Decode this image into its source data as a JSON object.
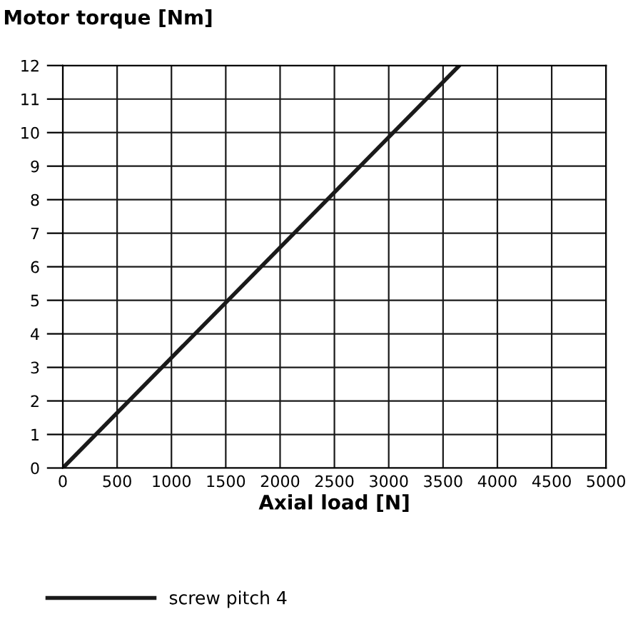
{
  "chart_data": {
    "type": "line",
    "title": "Motor torque [Nm]",
    "xlabel": "Axial load [N]",
    "series": [
      {
        "name": "screw pitch 4",
        "color": "#1a1a1a",
        "x": [
          0,
          3650
        ],
        "values": [
          0,
          12
        ]
      }
    ],
    "xlim": [
      0,
      5000
    ],
    "xticks": [
      0,
      500,
      1000,
      1500,
      2000,
      2500,
      3000,
      3500,
      4000,
      4500,
      5000
    ],
    "ylim": [
      0,
      12
    ],
    "yticks": [
      0,
      1,
      2,
      3,
      4,
      5,
      6,
      7,
      8,
      9,
      10,
      11,
      12
    ],
    "grid": true,
    "legend": "bottom",
    "marker": "none",
    "line_style": "solid"
  }
}
